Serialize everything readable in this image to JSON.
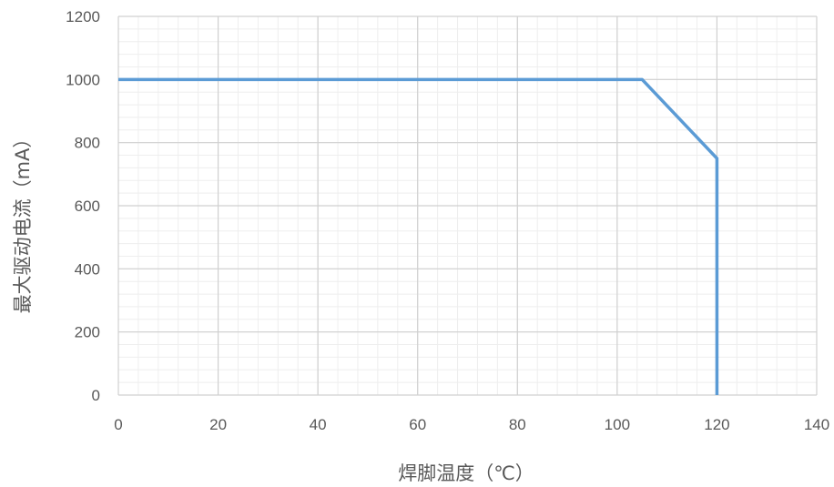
{
  "chart_data": {
    "type": "line",
    "title": "",
    "xlabel": "焊脚温度（℃）",
    "ylabel": "最大驱动电流（mA）",
    "xlim": [
      0,
      140
    ],
    "ylim": [
      0,
      1200
    ],
    "x_ticks": [
      "0",
      "20",
      "40",
      "60",
      "80",
      "100",
      "120",
      "140"
    ],
    "y_ticks": [
      "0",
      "200",
      "400",
      "600",
      "800",
      "1000",
      "1200"
    ],
    "grid": true,
    "legend": "none",
    "series": [
      {
        "color": "#5b9bd5",
        "x": [
          0,
          105,
          120,
          120
        ],
        "y": [
          1000,
          1000,
          750,
          0
        ]
      }
    ]
  }
}
